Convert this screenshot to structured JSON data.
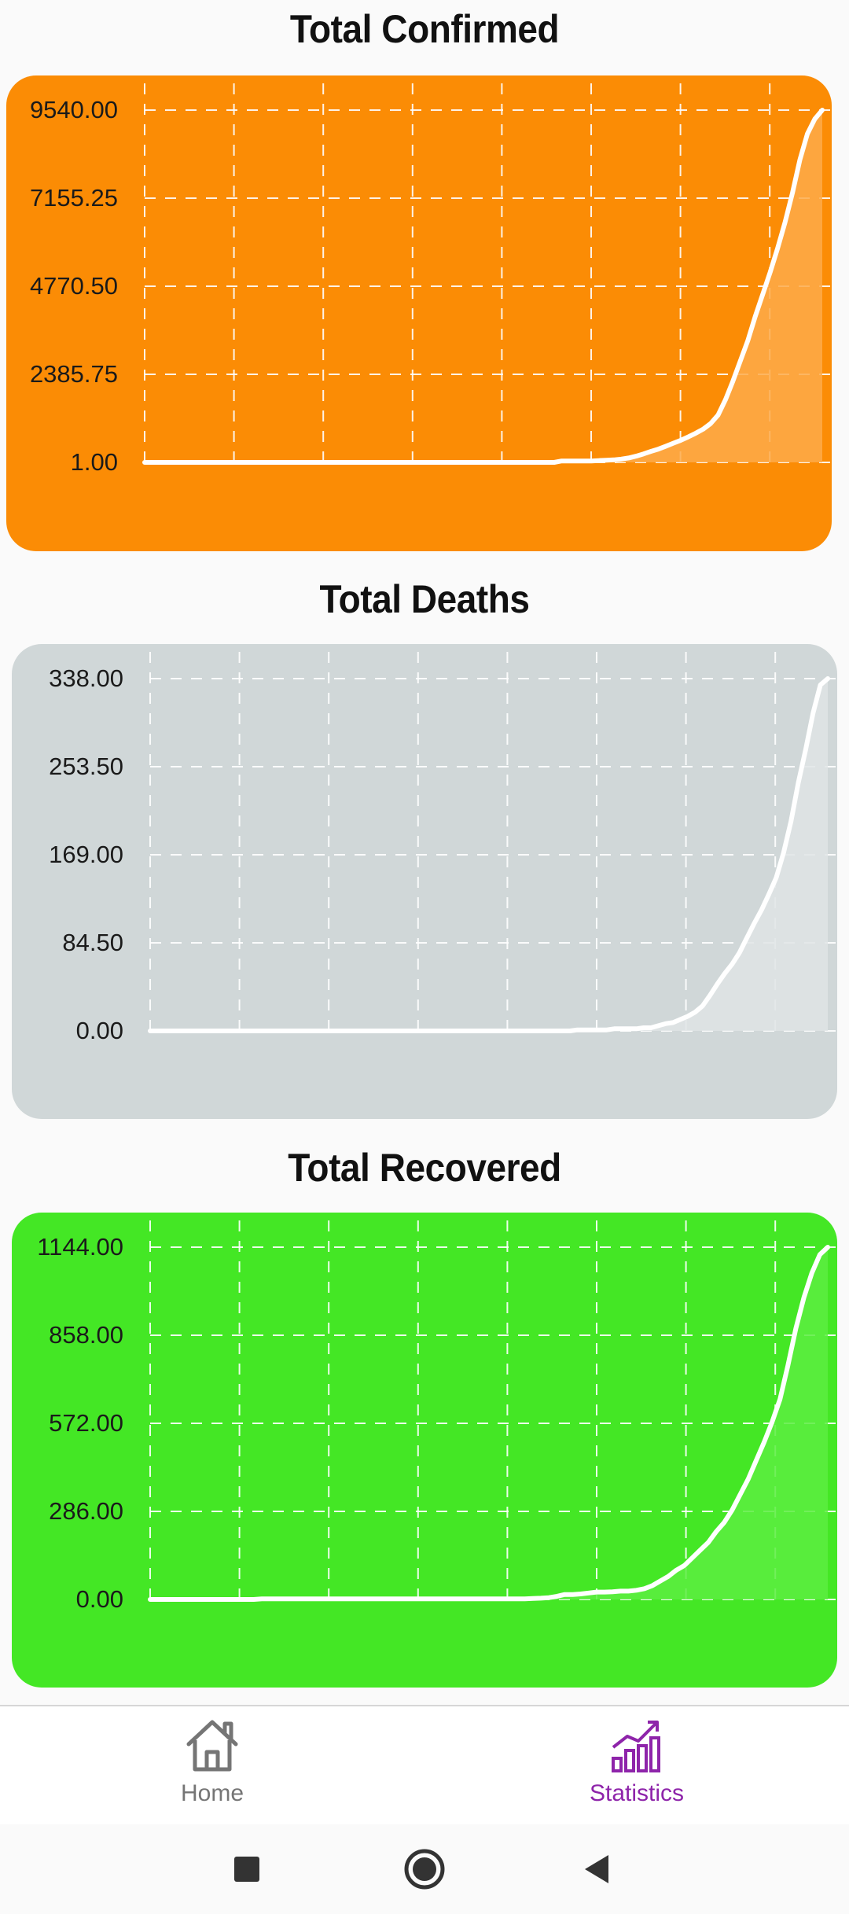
{
  "charts": [
    {
      "title": "Total Confirmed",
      "bg_color": "#fb8c05",
      "fill_color": "#fdaa4a",
      "y_ticks": [
        "9540.00",
        "7155.25",
        "4770.50",
        "2385.75",
        "1.00"
      ],
      "chart_data": {
        "type": "area",
        "title": "Total Confirmed",
        "ylim": [
          1,
          9540
        ],
        "values": [
          1,
          1,
          1,
          1,
          1,
          1,
          1,
          1,
          1,
          1,
          1,
          1,
          1,
          1,
          1,
          1,
          1,
          1,
          1,
          1,
          1,
          1,
          1,
          1,
          1,
          1,
          1,
          1,
          1,
          1,
          1,
          1,
          1,
          1,
          1,
          1,
          1,
          1,
          1,
          1,
          1,
          1,
          1,
          1,
          1,
          1,
          1,
          1,
          1,
          1,
          1,
          1,
          1,
          1,
          1,
          1,
          40,
          40,
          40,
          40,
          40,
          50,
          60,
          70,
          90,
          120,
          170,
          230,
          300,
          360,
          440,
          520,
          600,
          690,
          790,
          900,
          1050,
          1280,
          1700,
          2200,
          2750,
          3300,
          3950,
          4550,
          5150,
          5800,
          6500,
          7300,
          8200,
          8900,
          9300,
          9540
        ]
      }
    },
    {
      "title": "Total Deaths",
      "bg_color": "#d0d7d8",
      "fill_color": "#dfe4e5",
      "y_ticks": [
        "338.00",
        "253.50",
        "169.00",
        "84.50",
        "0.00"
      ],
      "chart_data": {
        "type": "area",
        "title": "Total Deaths",
        "ylim": [
          0,
          338
        ],
        "values": [
          0,
          0,
          0,
          0,
          0,
          0,
          0,
          0,
          0,
          0,
          0,
          0,
          0,
          0,
          0,
          0,
          0,
          0,
          0,
          0,
          0,
          0,
          0,
          0,
          0,
          0,
          0,
          0,
          0,
          0,
          0,
          0,
          0,
          0,
          0,
          0,
          0,
          0,
          0,
          0,
          0,
          0,
          0,
          0,
          0,
          0,
          0,
          0,
          0,
          0,
          0,
          0,
          0,
          0,
          0,
          0,
          0,
          0,
          1,
          1,
          1,
          1,
          1,
          2,
          2,
          2,
          2,
          3,
          3,
          5,
          7,
          8,
          11,
          14,
          18,
          24,
          34,
          45,
          55,
          64,
          75,
          89,
          103,
          116,
          131,
          147,
          171,
          201,
          238,
          270,
          305,
          332,
          338
        ]
      }
    },
    {
      "title": "Total Recovered",
      "bg_color": "#44e725",
      "fill_color": "#5ced41",
      "y_ticks": [
        "1144.00",
        "858.00",
        "572.00",
        "286.00",
        "0.00"
      ],
      "chart_data": {
        "type": "area",
        "title": "Total Recovered",
        "ylim": [
          0,
          1144
        ],
        "values": [
          0,
          0,
          0,
          0,
          0,
          0,
          0,
          0,
          0,
          0,
          0,
          0,
          0,
          0,
          2,
          2,
          2,
          2,
          2,
          2,
          2,
          2,
          2,
          2,
          2,
          2,
          2,
          2,
          2,
          2,
          2,
          2,
          2,
          2,
          2,
          2,
          2,
          2,
          2,
          2,
          2,
          2,
          2,
          2,
          2,
          2,
          2,
          2,
          3,
          4,
          6,
          10,
          16,
          16,
          18,
          21,
          24,
          24,
          25,
          27,
          27,
          30,
          35,
          45,
          60,
          75,
          95,
          110,
          135,
          160,
          185,
          220,
          250,
          290,
          340,
          390,
          450,
          510,
          575,
          650,
          760,
          880,
          980,
          1060,
          1120,
          1144
        ]
      }
    }
  ],
  "bottom_nav": {
    "items": [
      {
        "label": "Home",
        "icon": "home-icon",
        "color": "#757575"
      },
      {
        "label": "Statistics",
        "icon": "statistics-icon",
        "color": "#8e24aa"
      }
    ]
  },
  "system_nav": {
    "icons": [
      "recents-square-icon",
      "home-circle-icon",
      "back-triangle-icon"
    ]
  }
}
